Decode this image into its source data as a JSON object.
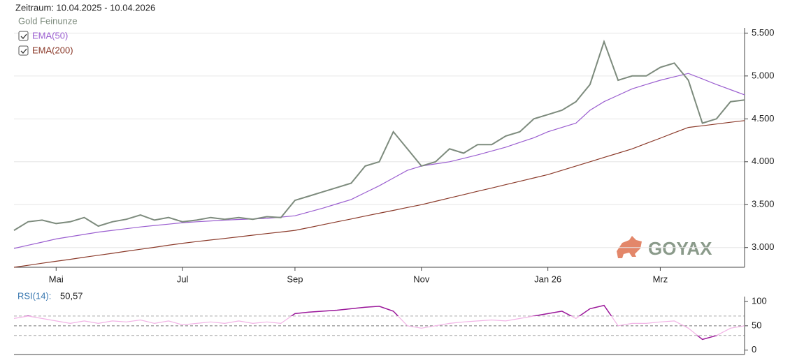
{
  "chart_data": [
    {
      "type": "line",
      "title": "Zeitraum: 10.04.2025 - 10.04.2026",
      "logo": "GOYAX",
      "categories": [
        null,
        null,
        null,
        "Mai",
        null,
        null,
        null,
        null,
        null,
        null,
        null,
        null,
        "Jul",
        null,
        null,
        null,
        null,
        null,
        null,
        null,
        "Sep",
        null,
        null,
        null,
        null,
        null,
        null,
        null,
        null,
        "Nov",
        null,
        null,
        null,
        null,
        null,
        null,
        null,
        null,
        "Jan 26",
        null,
        null,
        null,
        null,
        null,
        null,
        null,
        "Mrz",
        null,
        null,
        null,
        null,
        null,
        null
      ],
      "series": [
        {
          "name": "Gold Feinunze",
          "color": "#7d8b7d",
          "checkbox": false,
          "values": [
            3200,
            3300,
            3320,
            3280,
            3300,
            3350,
            3250,
            3300,
            3330,
            3380,
            3320,
            3350,
            3300,
            3320,
            3350,
            3330,
            3350,
            3330,
            3360,
            3350,
            3550,
            3600,
            3650,
            3700,
            3750,
            3950,
            4000,
            4350,
            4150,
            3950,
            4000,
            4150,
            4100,
            4200,
            4200,
            4300,
            4350,
            4500,
            4550,
            4600,
            4700,
            4900,
            5400,
            4950,
            5000,
            5000,
            5100,
            5150,
            4950,
            4450,
            4500,
            4700,
            4720
          ]
        },
        {
          "name": "EMA(50)",
          "color": "#9b5fd0",
          "checkbox": true,
          "values": [
            2990,
            3027,
            3063,
            3100,
            3127,
            3153,
            3180,
            3200,
            3220,
            3240,
            3257,
            3273,
            3290,
            3300,
            3310,
            3320,
            3327,
            3333,
            3340,
            3355,
            3370,
            3415,
            3460,
            3510,
            3560,
            3640,
            3720,
            3810,
            3900,
            3950,
            3975,
            4000,
            4040,
            4080,
            4125,
            4170,
            4225,
            4280,
            4350,
            4400,
            4450,
            4600,
            4700,
            4775,
            4850,
            4900,
            4950,
            4990,
            5030,
            4965,
            4900,
            4840,
            4780
          ]
        },
        {
          "name": "EMA(200)",
          "color": "#8b3a2a",
          "checkbox": true,
          "values": [
            2770,
            2793,
            2817,
            2840,
            2863,
            2887,
            2910,
            2933,
            2957,
            2980,
            3003,
            3027,
            3050,
            3069,
            3088,
            3106,
            3125,
            3144,
            3163,
            3181,
            3200,
            3233,
            3267,
            3300,
            3333,
            3367,
            3400,
            3433,
            3467,
            3500,
            3539,
            3578,
            3617,
            3656,
            3694,
            3733,
            3772,
            3811,
            3850,
            3900,
            3950,
            4000,
            4050,
            4100,
            4150,
            4213,
            4275,
            4338,
            4400,
            4420,
            4440,
            4460,
            4480
          ]
        }
      ],
      "ylim": [
        2770,
        5560
      ],
      "yticks": [
        {
          "value": 3000,
          "label": "3.000"
        },
        {
          "value": 3500,
          "label": "3.500"
        },
        {
          "value": 4000,
          "label": "4.000"
        },
        {
          "value": 4500,
          "label": "4.500"
        },
        {
          "value": 5000,
          "label": "5.000"
        },
        {
          "value": 5500,
          "label": "5.500"
        }
      ],
      "grid": true
    },
    {
      "type": "line",
      "title": "RSI(14):",
      "current_value_label": "50,57",
      "series": [
        {
          "name": "RSI(14)",
          "color": "#f2b3e6",
          "extreme_color": "#9b1a9b",
          "values": [
            65,
            70,
            65,
            60,
            55,
            60,
            55,
            60,
            58,
            62,
            55,
            60,
            52,
            55,
            58,
            55,
            60,
            55,
            58,
            55,
            75,
            78,
            80,
            82,
            85,
            88,
            90,
            80,
            50,
            45,
            50,
            55,
            58,
            60,
            62,
            60,
            65,
            70,
            75,
            80,
            65,
            85,
            92,
            50,
            55,
            55,
            58,
            60,
            45,
            22,
            30,
            45,
            50
          ]
        }
      ],
      "ylim": [
        -9,
        110
      ],
      "yticks": [
        0,
        50,
        100
      ],
      "bands": [
        30,
        50,
        70
      ]
    }
  ]
}
